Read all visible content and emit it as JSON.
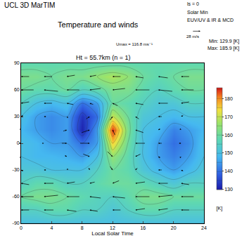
{
  "chart_data": {
    "type": "contour_map",
    "title": "Temperature and winds",
    "header_left": "UCL 3D MarTIM",
    "header_right": [
      "ls = 0",
      "Solar Min",
      "EUV/UV & IR & MCD"
    ],
    "subtitle": "Ht = 55.7km (n = 1)",
    "umax_text": "Umax = 116.8 ms⁻¹",
    "min_text": "Min: 129.9 [K]",
    "max_text": "Max: 185.9 [K]",
    "reference_arrow": {
      "speed": 28,
      "label": "28 m/s"
    },
    "x_label": "Local Solar Time",
    "xlim": [
      0,
      24
    ],
    "xticks": [
      0,
      4,
      8,
      12,
      16,
      20,
      24
    ],
    "ylim": [
      -90,
      90
    ],
    "yticks": [
      -90,
      -60,
      -30,
      0,
      30,
      60,
      90
    ],
    "temperature": {
      "x": [
        0,
        2,
        4,
        6,
        8,
        10,
        12,
        14,
        16,
        18,
        20,
        22,
        24
      ],
      "y": [
        -90,
        -75,
        -60,
        -45,
        -30,
        -15,
        0,
        15,
        30,
        45,
        60,
        75,
        90
      ],
      "cells": [
        [
          150,
          150,
          150,
          150,
          150,
          150,
          150,
          150,
          150,
          150,
          150,
          150,
          150
        ],
        [
          155,
          155,
          158,
          158,
          155,
          155,
          152,
          155,
          158,
          158,
          155,
          155,
          155
        ],
        [
          160,
          162,
          162,
          160,
          158,
          156,
          155,
          158,
          162,
          162,
          160,
          160,
          160
        ],
        [
          155,
          158,
          158,
          155,
          155,
          158,
          160,
          160,
          158,
          155,
          152,
          155,
          155
        ],
        [
          152,
          152,
          150,
          150,
          150,
          155,
          160,
          158,
          152,
          148,
          145,
          148,
          152
        ],
        [
          150,
          148,
          148,
          147,
          145,
          150,
          165,
          158,
          150,
          145,
          142,
          145,
          150
        ],
        [
          150,
          148,
          145,
          145,
          140,
          145,
          175,
          160,
          150,
          145,
          140,
          143,
          150
        ],
        [
          148,
          145,
          143,
          145,
          131,
          145,
          185,
          162,
          150,
          148,
          142,
          145,
          148
        ],
        [
          150,
          145,
          143,
          145,
          133,
          140,
          170,
          160,
          152,
          150,
          148,
          150,
          150
        ],
        [
          155,
          150,
          148,
          150,
          140,
          145,
          160,
          158,
          155,
          152,
          152,
          155,
          155
        ],
        [
          160,
          158,
          158,
          160,
          155,
          158,
          162,
          162,
          158,
          155,
          158,
          160,
          160
        ],
        [
          162,
          162,
          160,
          162,
          162,
          165,
          168,
          165,
          160,
          158,
          160,
          162,
          162
        ],
        [
          158,
          158,
          158,
          158,
          158,
          158,
          158,
          158,
          158,
          158,
          158,
          158,
          158
        ]
      ],
      "contour_levels": {
        "start": 130,
        "end": 185,
        "size": 5
      }
    },
    "colorbar": {
      "range": [
        129.9,
        185.9
      ],
      "ticks": [
        130,
        140,
        150,
        160,
        170,
        180
      ],
      "label": "[K]"
    },
    "winds": {
      "x": [
        0,
        3,
        6,
        9,
        12,
        15,
        18,
        21
      ],
      "y": [
        -75,
        -60,
        -45,
        -30,
        -15,
        0,
        15,
        30,
        45,
        60,
        75
      ],
      "u": [
        [
          -30,
          -35,
          -35,
          -30,
          -30,
          -35,
          -35,
          -30
        ],
        [
          -45,
          -50,
          -45,
          -40,
          -45,
          -50,
          -50,
          -45
        ],
        [
          -30,
          -35,
          -30,
          -20,
          -25,
          -35,
          -35,
          -30
        ],
        [
          -10,
          -10,
          -5,
          5,
          10,
          -10,
          -15,
          -10
        ],
        [
          5,
          0,
          10,
          25,
          20,
          -20,
          -10,
          5
        ],
        [
          10,
          5,
          20,
          35,
          0,
          -35,
          -15,
          10
        ],
        [
          5,
          0,
          15,
          30,
          -10,
          -30,
          -10,
          5
        ],
        [
          -10,
          -10,
          -5,
          15,
          10,
          -15,
          -15,
          -10
        ],
        [
          -30,
          -30,
          -25,
          -15,
          -20,
          -30,
          -35,
          -30
        ],
        [
          -45,
          -50,
          -45,
          -40,
          -45,
          -50,
          -50,
          -45
        ],
        [
          -30,
          -30,
          -30,
          -25,
          -30,
          -30,
          -35,
          -30
        ]
      ],
      "v": [
        [
          0,
          0,
          5,
          5,
          0,
          -5,
          -5,
          0
        ],
        [
          0,
          -5,
          0,
          5,
          5,
          0,
          -5,
          0
        ],
        [
          5,
          0,
          -5,
          -5,
          -10,
          -5,
          0,
          5
        ],
        [
          5,
          0,
          -5,
          -10,
          -15,
          -10,
          0,
          5
        ],
        [
          5,
          0,
          -5,
          -10,
          -20,
          -10,
          5,
          5
        ],
        [
          0,
          0,
          0,
          0,
          0,
          0,
          0,
          0
        ],
        [
          -5,
          0,
          5,
          10,
          20,
          10,
          -5,
          -5
        ],
        [
          -5,
          0,
          5,
          10,
          15,
          10,
          0,
          -5
        ],
        [
          -5,
          0,
          5,
          5,
          10,
          5,
          0,
          -5
        ],
        [
          0,
          5,
          0,
          -5,
          -5,
          0,
          5,
          0
        ],
        [
          0,
          0,
          -5,
          -5,
          0,
          5,
          5,
          0
        ]
      ]
    },
    "grid": false
  }
}
